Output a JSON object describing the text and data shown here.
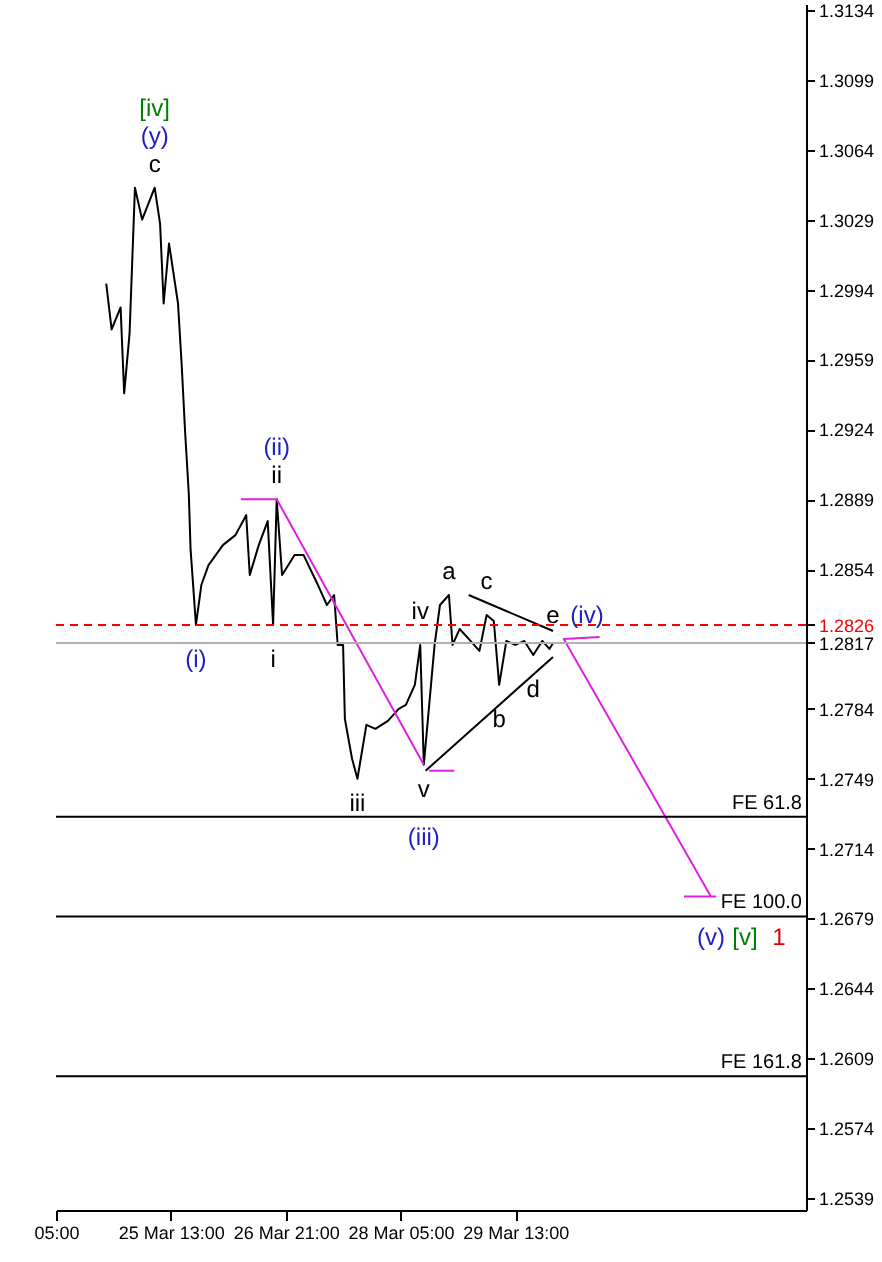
{
  "chart_data": {
    "type": "line",
    "xlim": [
      "--03-24T05:00",
      "--04-01T22:00"
    ],
    "ylim": [
      1.2533,
      1.3137
    ],
    "xticks": [
      {
        "value": "--03-24T05:00",
        "label": "05:00"
      },
      {
        "value": "--03-25T13:00",
        "label": "25 Mar 13:00"
      },
      {
        "value": "--03-26T21:00",
        "label": "26 Mar 21:00"
      },
      {
        "value": "--03-28T05:00",
        "label": "28 Mar 05:00"
      },
      {
        "value": "--03-29T13:00",
        "label": "29 Mar 13:00"
      }
    ],
    "yticks": [
      1.2539,
      1.2574,
      1.2609,
      1.2644,
      1.2679,
      1.2714,
      1.2749,
      1.2784,
      1.2817,
      1.2826,
      1.2854,
      1.2889,
      1.2924,
      1.2959,
      1.2994,
      1.3029,
      1.3064,
      1.3099,
      1.3134
    ],
    "grid": false,
    "series": [
      {
        "type": "line",
        "color": "#000000",
        "x": [
          "--03-24T19:00",
          "--03-24T20:30",
          "--03-24T23:00",
          "--03-25T00:00",
          "--03-25T01:30",
          "--03-25T03:00",
          "--03-25T05:00",
          "--03-25T08:30",
          "--03-25T10:00",
          "--03-25T11:00",
          "--03-25T12:30",
          "--03-25T15:00",
          "--03-25T16:00",
          "--03-25T17:00",
          "--03-25T18:00",
          "--03-25T18:30",
          "--03-25T20:00",
          "--03-25T21:30",
          "--03-25T23:30",
          "--03-26T03:30",
          "--03-26T07:00",
          "--03-26T10:00",
          "--03-26T11:00",
          "--03-26T13:30",
          "--03-26T16:00",
          "--03-26T17:30",
          "--03-26T18:30",
          "--03-26T20:00",
          "--03-26T23:30",
          "--03-27T02:00",
          "--03-27T06:00",
          "--03-27T08:30",
          "--03-27T10:30",
          "--03-27T11:30",
          "--03-27T13:00",
          "--03-27T13:30",
          "--03-27T15:30",
          "--03-27T17:00",
          "--03-27T19:30",
          "--03-27T22:00",
          "--03-28T01:30",
          "--03-28T04:30",
          "--03-28T06:30",
          "--03-28T09:00",
          "--03-28T10:30",
          "--03-28T11:30",
          "--03-28T13:00",
          "--03-28T14:30",
          "--03-28T16:00",
          "--03-28T18:30",
          "--03-28T19:30",
          "--03-28T21:30",
          "--03-29T00:30",
          "--03-29T03:00",
          "--03-29T05:00",
          "--03-29T07:00",
          "--03-29T08:30",
          "--03-29T10:30",
          "--03-29T13:00",
          "--03-29T15:30",
          "--03-29T18:00",
          "--03-29T20:30",
          "--03-29T22:30",
          "--03-29T23:30"
        ],
        "values": [
          1.2997,
          1.2974,
          1.2985,
          1.2942,
          1.2972,
          1.3045,
          1.3029,
          1.3045,
          1.3027,
          1.2987,
          1.3017,
          1.2987,
          1.2957,
          1.2922,
          1.2892,
          1.2864,
          1.2826,
          1.2846,
          1.2856,
          1.2866,
          1.2871,
          1.2881,
          1.2851,
          1.2866,
          1.2878,
          1.2826,
          1.2889,
          1.2851,
          1.2861,
          1.2861,
          1.2846,
          1.2836,
          1.2841,
          1.2816,
          1.2816,
          1.2779,
          1.2759,
          1.2749,
          1.2776,
          1.2774,
          1.2778,
          1.2784,
          1.2786,
          1.2796,
          1.2816,
          1.2756,
          1.2786,
          1.2816,
          1.2836,
          1.2841,
          1.2816,
          1.2824,
          1.2818,
          1.2813,
          1.2831,
          1.2828,
          1.2796,
          1.2818,
          1.2816,
          1.2818,
          1.2811,
          1.2818,
          1.2814,
          1.2817
        ]
      },
      {
        "type": "line",
        "color": "#e020e0",
        "x": [
          "--03-26T08:30",
          "--03-26T18:30",
          "--03-28T11:30"
        ],
        "values": [
          1.2889,
          1.2889,
          1.2756
        ]
      },
      {
        "type": "line",
        "color": "#e020e0",
        "x": [
          "--03-28T13:00",
          "--03-28T20:00"
        ],
        "values": [
          1.2753,
          1.2753
        ]
      },
      {
        "type": "line",
        "color": "#e020e0",
        "x": [
          "--03-30T12:30",
          "--03-30T02:30",
          "--03-31T19:30"
        ],
        "values": [
          1.282,
          1.2819,
          1.269
        ]
      },
      {
        "type": "line",
        "color": "#e020e0",
        "x": [
          "--03-31T12:00",
          "--03-31T21:00"
        ],
        "values": [
          1.269,
          1.269
        ]
      },
      {
        "type": "line",
        "color": "#000000",
        "x": [
          "--03-29T00:00",
          "--03-29T23:30"
        ],
        "values": [
          1.2841,
          1.2823
        ]
      },
      {
        "type": "line",
        "color": "#000000",
        "x": [
          "--03-28T12:00",
          "--03-29T23:30"
        ],
        "values": [
          1.2753,
          1.281
        ]
      }
    ],
    "ref_lines": [
      {
        "axis": "y",
        "value": 1.2826,
        "color": "#ff0000",
        "line_style": "dashed"
      },
      {
        "axis": "y",
        "value": 1.2817,
        "color": "#b0b0b0",
        "line_style": "solid"
      },
      {
        "axis": "y",
        "value": 1.273,
        "label": "FE 61.8",
        "color": "#000000",
        "line_style": "solid"
      },
      {
        "axis": "y",
        "value": 1.268,
        "label": "FE 100.0",
        "color": "#000000",
        "line_style": "solid"
      },
      {
        "axis": "y",
        "value": 1.26,
        "label": "FE 161.8",
        "color": "#000000",
        "line_style": "solid"
      }
    ],
    "annotations": [
      {
        "text": "c",
        "x": "--03-25T08:30",
        "y": 1.3045
      },
      {
        "text": "(y)",
        "x": "--03-25T08:30",
        "y": 1.3045
      },
      {
        "text": "[iv]",
        "x": "--03-25T08:30",
        "y": 1.3045
      },
      {
        "text": "ii",
        "x": "--03-26T18:30",
        "y": 1.2889
      },
      {
        "text": "(ii)",
        "x": "--03-26T18:30",
        "y": 1.2889
      },
      {
        "text": "(i)",
        "x": "--03-25T20:00",
        "y": 1.2826
      },
      {
        "text": "i",
        "x": "--03-26T17:30",
        "y": 1.2826
      },
      {
        "text": "iv",
        "x": "--03-28T10:30",
        "y": 1.2816
      },
      {
        "text": "a",
        "x": "--03-28T18:30",
        "y": 1.2841
      },
      {
        "text": "c",
        "x": "--03-29T05:00",
        "y": 1.2831
      },
      {
        "text": "e",
        "x": "--03-29T23:30",
        "y": 1.2817
      },
      {
        "text": "(iv)",
        "x": "--03-29T23:30",
        "y": 1.2817
      },
      {
        "text": "d",
        "x": "--03-29T18:00",
        "y": 1.2811
      },
      {
        "text": "b",
        "x": "--03-29T08:30",
        "y": 1.2796
      },
      {
        "text": "iii",
        "x": "--03-27T17:00",
        "y": 1.2749
      },
      {
        "text": "v",
        "x": "--03-28T11:30",
        "y": 1.2756
      },
      {
        "text": "(iii)",
        "x": "--03-28T11:30",
        "y": 1.2756
      },
      {
        "text": "(v)",
        "x": "--03-31T19:30",
        "y": 1.269
      },
      {
        "text": "[v]",
        "x": "--03-31T19:30",
        "y": 1.269
      },
      {
        "text": "1",
        "x": "--03-31T19:30",
        "y": 1.269
      }
    ]
  }
}
